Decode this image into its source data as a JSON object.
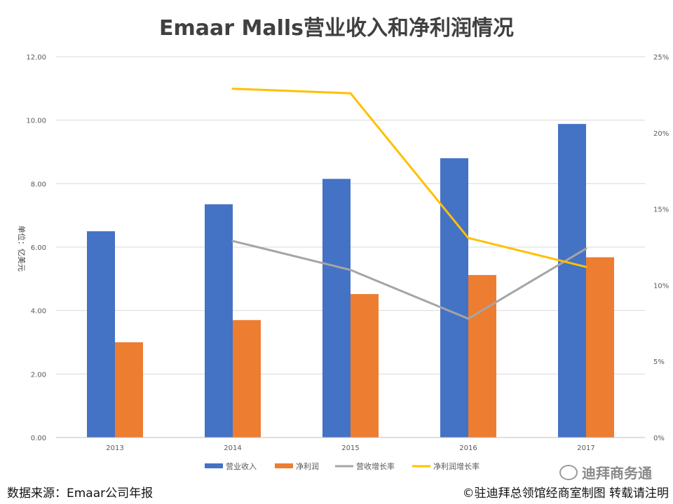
{
  "chart_data": {
    "type": "bar",
    "title": "Emaar Malls营业收入和净利润情况",
    "ylabel": "单位：亿美元",
    "categories": [
      "2013",
      "2014",
      "2015",
      "2016",
      "2017"
    ],
    "ylim": [
      0,
      12
    ],
    "y_ticks": [
      "0.00",
      "2.00",
      "4.00",
      "6.00",
      "8.00",
      "10.00",
      "12.00"
    ],
    "y2lim": [
      0,
      25
    ],
    "y2_ticks": [
      "0%",
      "5%",
      "10%",
      "15%",
      "20%",
      "25%"
    ],
    "series": [
      {
        "name": "营业收入",
        "kind": "bar",
        "axis": "left",
        "color": "#4472C4",
        "values": [
          6.5,
          7.35,
          8.15,
          8.8,
          9.88
        ]
      },
      {
        "name": "净利润",
        "kind": "bar",
        "axis": "left",
        "color": "#ED7D31",
        "values": [
          3.0,
          3.7,
          4.52,
          5.12,
          5.68
        ]
      },
      {
        "name": "营收增长率",
        "kind": "line",
        "axis": "right",
        "color": "#A5A5A5",
        "values": [
          null,
          12.9,
          11.0,
          7.8,
          12.4
        ]
      },
      {
        "name": "净利润增长率",
        "kind": "line",
        "axis": "right",
        "color": "#FFC000",
        "values": [
          null,
          22.9,
          22.6,
          13.1,
          11.2
        ]
      }
    ],
    "grid": true,
    "legend_position": "bottom"
  },
  "footer": {
    "source": "数据来源：Emaar公司年报",
    "copyright": "©驻迪拜总领馆经商室制图 转载请注明",
    "watermark": "迪拜商务通"
  }
}
